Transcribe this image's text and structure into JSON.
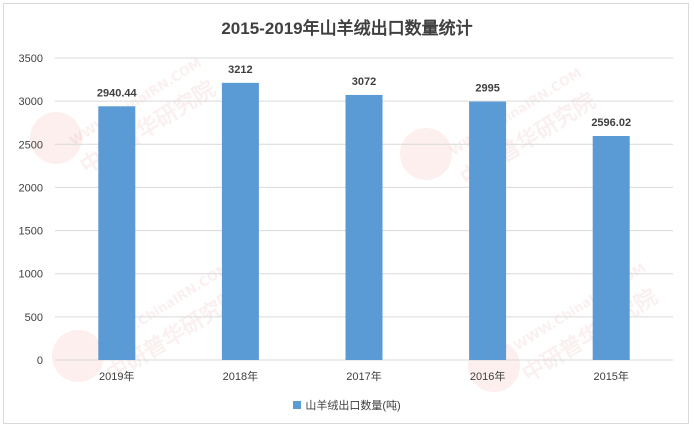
{
  "chart_data": {
    "type": "bar",
    "title": "2015-2019年山羊绒出口数量统计",
    "categories": [
      "2019年",
      "2018年",
      "2017年",
      "2016年",
      "2015年"
    ],
    "series": [
      {
        "name": "山羊绒出口数量(吨)",
        "values": [
          2940.44,
          3212,
          3072,
          2995,
          2596.02
        ]
      }
    ],
    "data_labels": [
      "2940.44",
      "3212",
      "3072",
      "2995",
      "2596.02"
    ],
    "yticks": [
      "0",
      "500",
      "1000",
      "1500",
      "2000",
      "2500",
      "3000",
      "3500"
    ],
    "ylim": [
      0,
      3500
    ],
    "grid": true,
    "legend_position": "bottom",
    "colors": {
      "bar": "#5b9bd5",
      "grid": "#d9d9d9",
      "text": "#404040"
    }
  },
  "watermark": {
    "text": "WWW.ChinaIRN.COM",
    "org": "中研普华研究院",
    "logo": "CIRN"
  }
}
